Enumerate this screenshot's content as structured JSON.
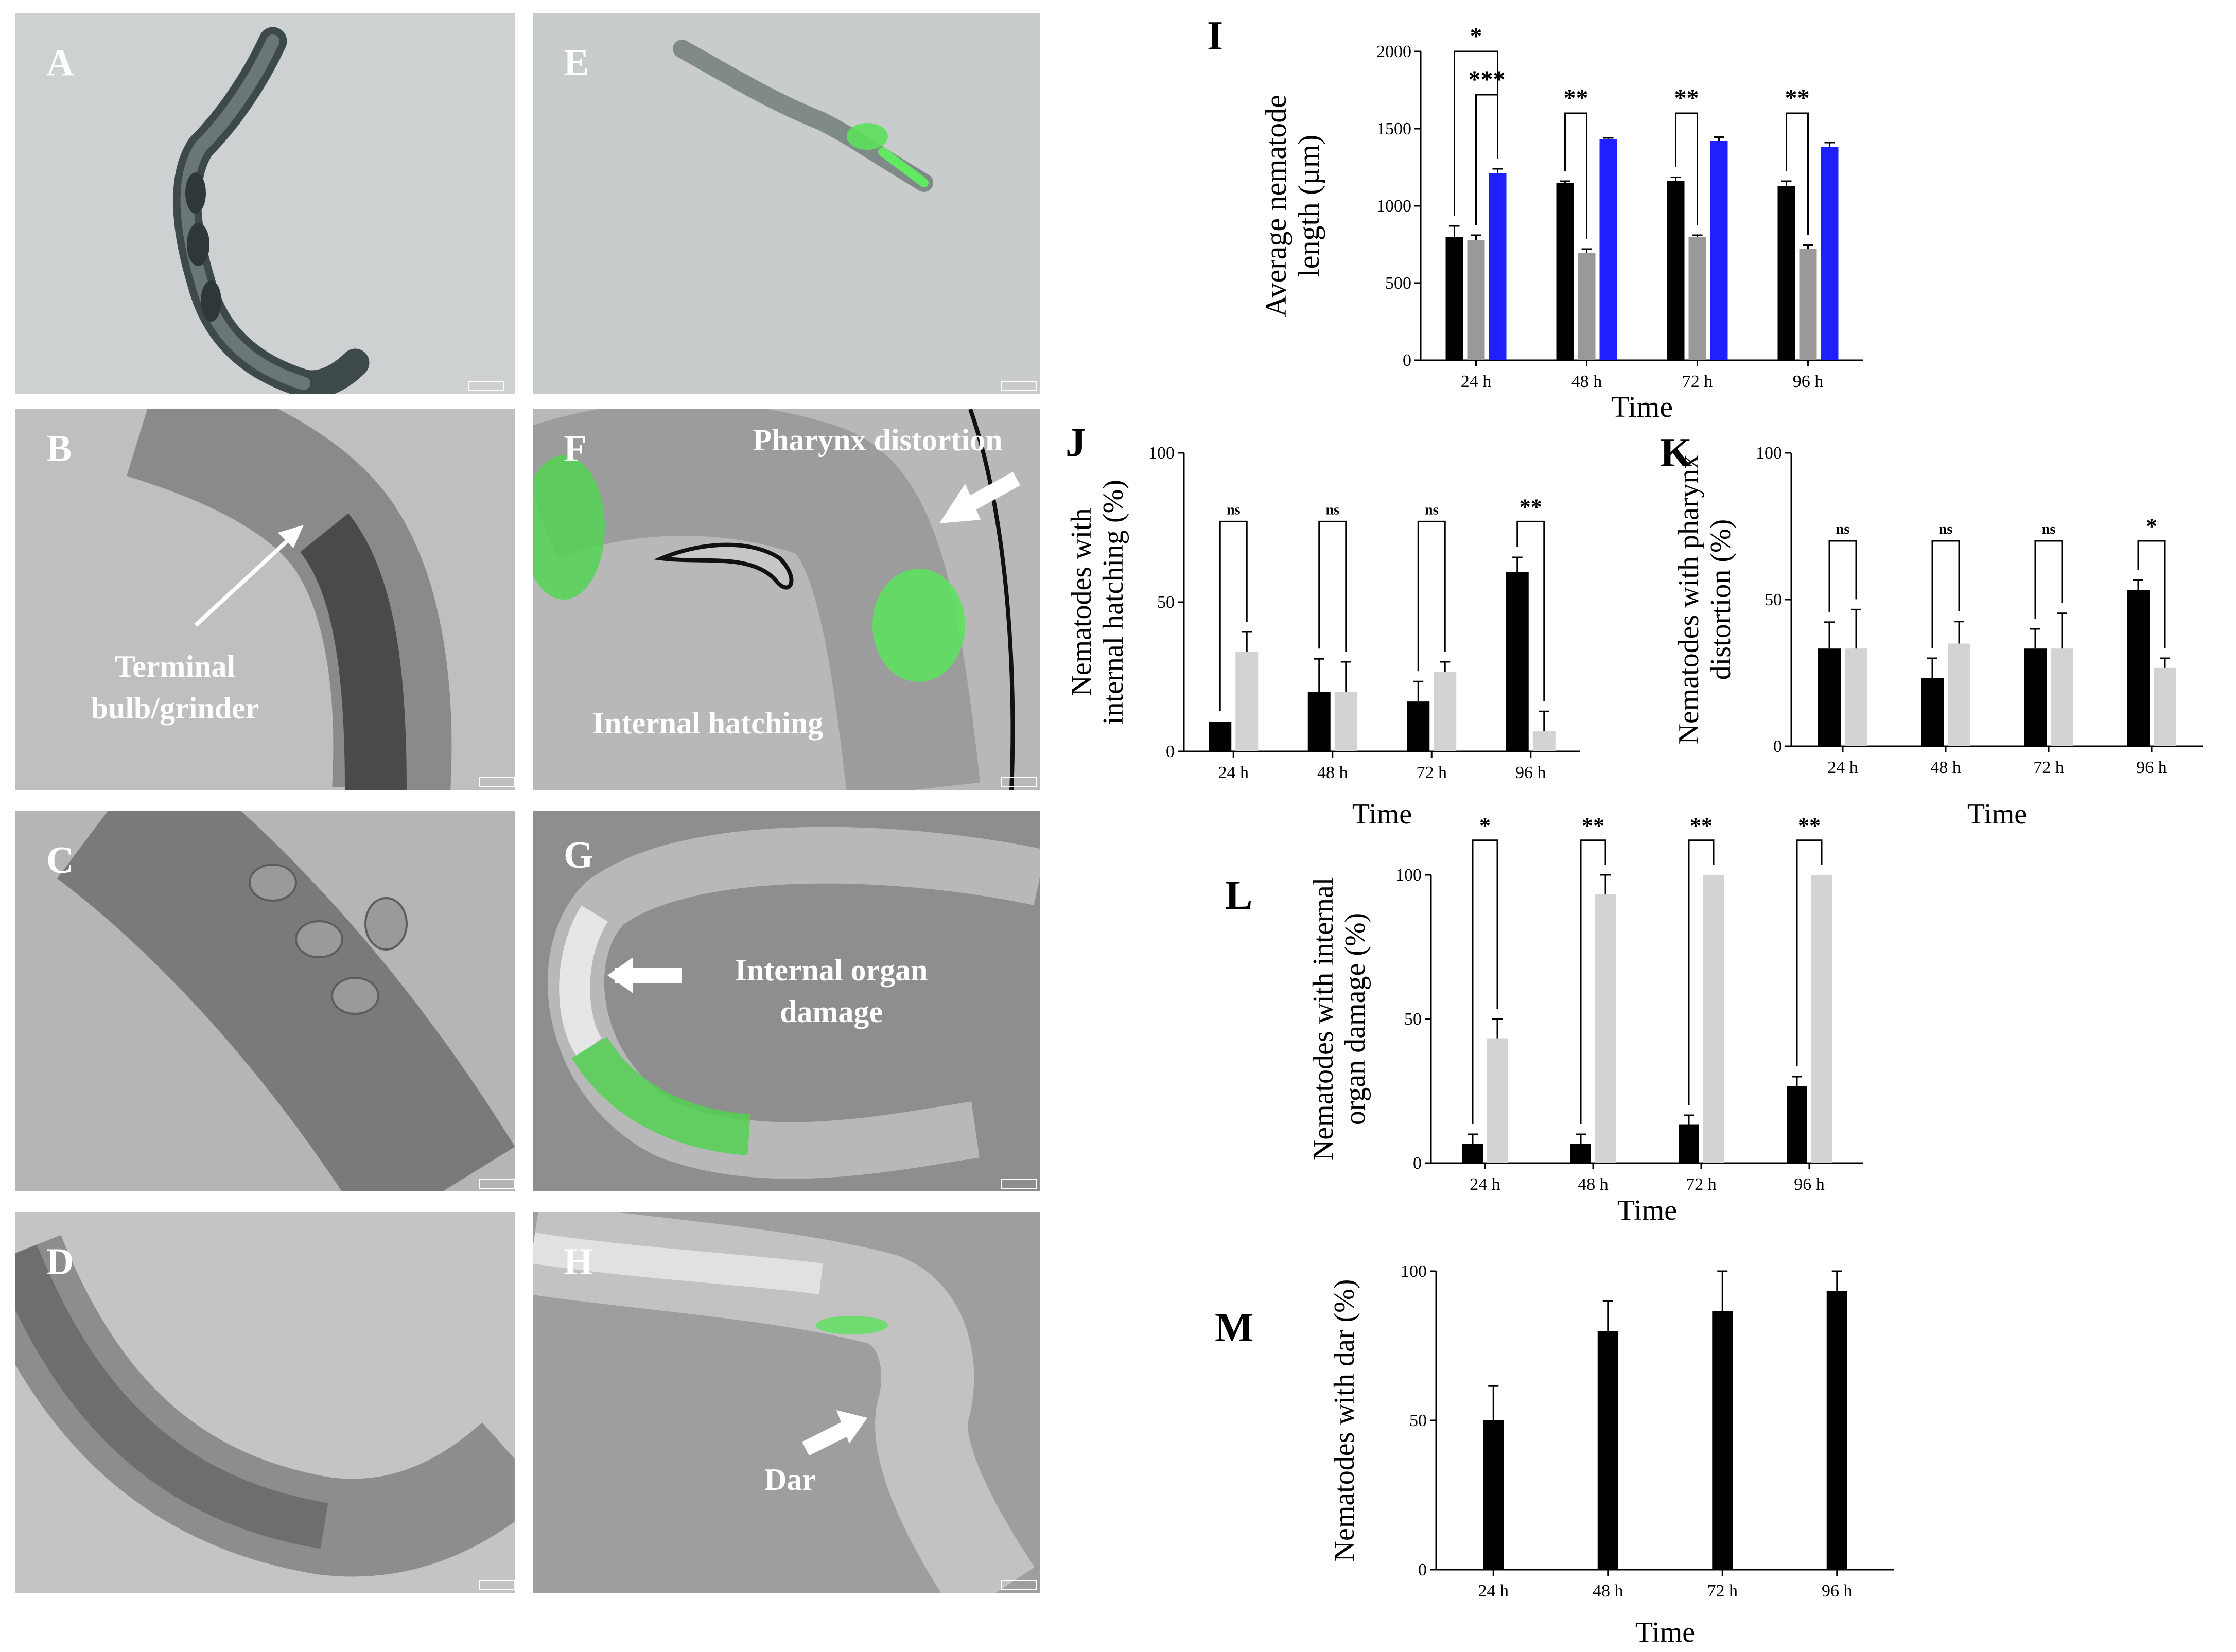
{
  "micrographs": [
    {
      "id": "A",
      "label": "A"
    },
    {
      "id": "B",
      "label": "B",
      "annotation": "Terminal\nbulb/grinder"
    },
    {
      "id": "C",
      "label": "C"
    },
    {
      "id": "D",
      "label": "D"
    },
    {
      "id": "E",
      "label": "E"
    },
    {
      "id": "F",
      "label": "F",
      "annotation": "Pharynx distortion",
      "annotation2": "Internal hatching"
    },
    {
      "id": "G",
      "label": "G",
      "annotation": "Internal organ\ndamage"
    },
    {
      "id": "H",
      "label": "H",
      "annotation": "Dar"
    }
  ],
  "chart_data": [
    {
      "id": "I",
      "label": "I",
      "type": "bar",
      "categories": [
        "24 h",
        "48 h",
        "72 h",
        "96 h"
      ],
      "series": [
        {
          "color": "#000000",
          "values": [
            800,
            1150,
            1160,
            1130
          ],
          "errors": [
            70,
            10,
            25,
            30
          ]
        },
        {
          "color": "#999999",
          "values": [
            780,
            695,
            800,
            720
          ],
          "errors": [
            30,
            25,
            10,
            25
          ]
        },
        {
          "color": "#1f1fff",
          "values": [
            1210,
            1430,
            1420,
            1380
          ],
          "errors": [
            30,
            10,
            25,
            30
          ]
        }
      ],
      "xlabel": "Time",
      "ylabel": "Average nematode\nlength (µm)",
      "ylim": [
        0,
        2000
      ],
      "yticks": [
        0,
        500,
        1000,
        1500,
        2000
      ],
      "significance": [
        {
          "cat": 0,
          "from": 0,
          "to": 2,
          "text": "*",
          "level": 2000
        },
        {
          "cat": 0,
          "from": 1,
          "to": 2,
          "text": "***",
          "level": 1720
        },
        {
          "cat": 1,
          "from": 0,
          "to": 1,
          "text": "**",
          "level": 1600
        },
        {
          "cat": 2,
          "from": 0,
          "to": 1,
          "text": "**",
          "level": 1600
        },
        {
          "cat": 3,
          "from": 0,
          "to": 1,
          "text": "**",
          "level": 1600
        }
      ]
    },
    {
      "id": "J",
      "label": "J",
      "type": "bar",
      "categories": [
        "24 h",
        "48 h",
        "72 h",
        "96 h"
      ],
      "series": [
        {
          "color": "#000000",
          "values": [
            10,
            20,
            16.7,
            60
          ],
          "errors": [
            0,
            11,
            6.7,
            5
          ]
        },
        {
          "color": "#d3d3d3",
          "values": [
            33.3,
            20,
            26.7,
            6.7
          ],
          "errors": [
            6.7,
            10,
            3.3,
            6.7
          ]
        }
      ],
      "xlabel": "Time",
      "ylabel": "Nematodes with\ninternal hatching (%)",
      "ylim": [
        0,
        100
      ],
      "yticks": [
        0,
        50,
        100
      ],
      "significance": [
        {
          "cat": 0,
          "from": 0,
          "to": 1,
          "text": "ns",
          "level": 77
        },
        {
          "cat": 1,
          "from": 0,
          "to": 1,
          "text": "ns",
          "level": 77
        },
        {
          "cat": 2,
          "from": 0,
          "to": 1,
          "text": "ns",
          "level": 77
        },
        {
          "cat": 3,
          "from": 0,
          "to": 1,
          "text": "**",
          "level": 77
        }
      ]
    },
    {
      "id": "K",
      "label": "K",
      "type": "bar",
      "categories": [
        "24 h",
        "48 h",
        "72 h",
        "96 h"
      ],
      "series": [
        {
          "color": "#000000",
          "values": [
            33.3,
            23.3,
            33.3,
            53.3
          ],
          "errors": [
            9,
            6.7,
            6.7,
            3.3
          ]
        },
        {
          "color": "#d3d3d3",
          "values": [
            33.3,
            35,
            33.3,
            26.7
          ],
          "errors": [
            13.3,
            7.5,
            12,
            3.3
          ]
        }
      ],
      "xlabel": "Time",
      "ylabel": "Nematodes with pharynx\ndistortion (%)",
      "ylim": [
        0,
        100
      ],
      "yticks": [
        0,
        50,
        100
      ],
      "significance": [
        {
          "cat": 0,
          "from": 0,
          "to": 1,
          "text": "ns",
          "level": 70
        },
        {
          "cat": 1,
          "from": 0,
          "to": 1,
          "text": "ns",
          "level": 70
        },
        {
          "cat": 2,
          "from": 0,
          "to": 1,
          "text": "ns",
          "level": 70
        },
        {
          "cat": 3,
          "from": 0,
          "to": 1,
          "text": "*",
          "level": 70
        }
      ]
    },
    {
      "id": "L",
      "label": "L",
      "type": "bar",
      "categories": [
        "24 h",
        "48 h",
        "72 h",
        "96 h"
      ],
      "series": [
        {
          "color": "#000000",
          "values": [
            6.7,
            6.7,
            13.3,
            26.7
          ],
          "errors": [
            3.3,
            3.3,
            3.3,
            3.3
          ]
        },
        {
          "color": "#d3d3d3",
          "values": [
            43.3,
            93.3,
            100,
            100
          ],
          "errors": [
            6.7,
            6.7,
            0,
            0
          ]
        }
      ],
      "xlabel": "Time",
      "ylabel": "Nematodes with internal\norgan damage (%)",
      "ylim": [
        0,
        100
      ],
      "yticks": [
        0,
        50,
        100
      ],
      "significance": [
        {
          "cat": 0,
          "from": 0,
          "to": 1,
          "text": "*",
          "level": 112
        },
        {
          "cat": 1,
          "from": 0,
          "to": 1,
          "text": "**",
          "level": 112
        },
        {
          "cat": 2,
          "from": 0,
          "to": 1,
          "text": "**",
          "level": 112
        },
        {
          "cat": 3,
          "from": 0,
          "to": 1,
          "text": "**",
          "level": 112
        }
      ]
    },
    {
      "id": "M",
      "label": "M",
      "type": "bar",
      "categories": [
        "24 h",
        "48 h",
        "72 h",
        "96 h"
      ],
      "series": [
        {
          "color": "#000000",
          "values": [
            50,
            80,
            86.7,
            93.3
          ],
          "errors": [
            11.5,
            10,
            13.3,
            6.7
          ]
        }
      ],
      "xlabel": "Time",
      "ylabel": "Nematodes with dar (%)",
      "ylim": [
        0,
        100
      ],
      "yticks": [
        0,
        50,
        100
      ],
      "significance": []
    }
  ]
}
